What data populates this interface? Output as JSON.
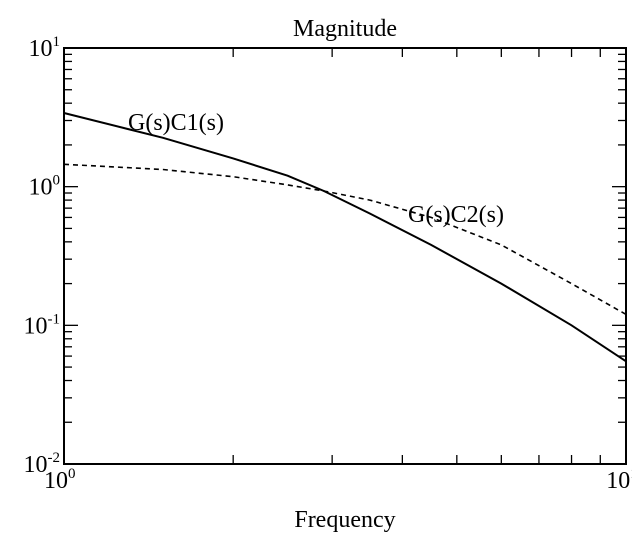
{
  "chart_data": {
    "type": "line",
    "title": "Magnitude",
    "xlabel": "Frequency",
    "ylabel": "",
    "xscale": "log",
    "yscale": "log",
    "xlim": [
      1,
      10
    ],
    "ylim": [
      0.01,
      10
    ],
    "grid": false,
    "x_ticks": [
      {
        "value": 1,
        "base": "10",
        "exp": "0"
      },
      {
        "value": 10,
        "base": "10",
        "exp": "1"
      }
    ],
    "y_ticks": [
      {
        "value": 0.01,
        "base": "10",
        "exp": "-2"
      },
      {
        "value": 0.1,
        "base": "10",
        "exp": "-1"
      },
      {
        "value": 1,
        "base": "10",
        "exp": "0"
      },
      {
        "value": 10,
        "base": "10",
        "exp": "1"
      }
    ],
    "series": [
      {
        "name": "G(s)C1(s)",
        "style": "solid",
        "x": [
          1,
          1.5,
          2,
          2.5,
          2.9,
          3.5,
          4.5,
          6,
          8,
          10
        ],
        "y": [
          3.4,
          2.25,
          1.6,
          1.2,
          0.93,
          0.64,
          0.38,
          0.2,
          0.1,
          0.055
        ]
      },
      {
        "name": "G(s)C2(s)",
        "style": "dashed",
        "x": [
          1,
          1.5,
          2,
          2.5,
          2.9,
          3.5,
          4.5,
          6,
          8,
          10
        ],
        "y": [
          1.45,
          1.33,
          1.18,
          1.03,
          0.93,
          0.8,
          0.6,
          0.38,
          0.2,
          0.12
        ]
      }
    ]
  }
}
